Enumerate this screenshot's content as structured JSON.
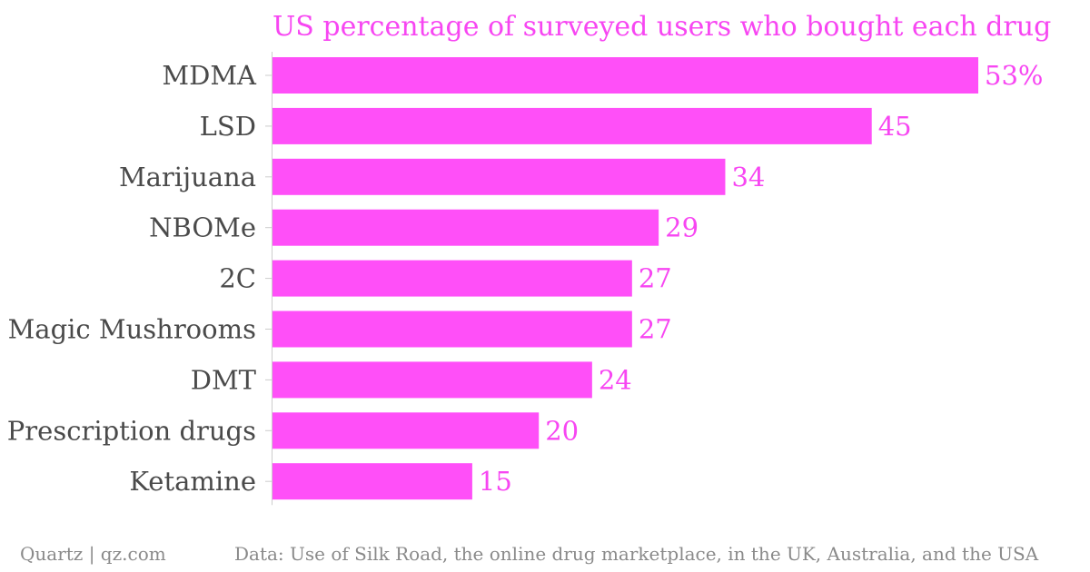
{
  "chart_data": {
    "type": "bar",
    "orientation": "horizontal",
    "title": "US percentage of surveyed users who bought each drug",
    "categories": [
      "MDMA",
      "LSD",
      "Marijuana",
      "NBOMe",
      "2C",
      "Magic Mushrooms",
      "DMT",
      "Prescription drugs",
      "Ketamine"
    ],
    "values": [
      53,
      45,
      34,
      29,
      27,
      27,
      24,
      20,
      15
    ],
    "value_labels": [
      "53%",
      "45",
      "34",
      "29",
      "27",
      "27",
      "24",
      "20",
      "15"
    ],
    "xlim": [
      0,
      53
    ],
    "grid": false,
    "xlabel": "",
    "ylabel": ""
  },
  "footer": {
    "source": "Quartz | qz.com",
    "data_note": "Data: Use of Silk Road, the online drug marketplace, in the UK, Australia, and the USA"
  },
  "colors": {
    "bar": "#ff4ff8",
    "title": "#f746f2",
    "value_label": "#f746f2",
    "category_label": "#4a4a4a",
    "footer": "#8a8a8a",
    "axis": "#cccccc"
  }
}
